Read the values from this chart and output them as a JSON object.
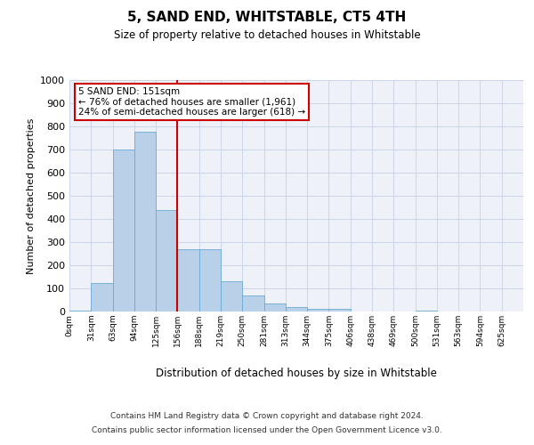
{
  "title": "5, SAND END, WHITSTABLE, CT5 4TH",
  "subtitle": "Size of property relative to detached houses in Whitstable",
  "xlabel": "Distribution of detached houses by size in Whitstable",
  "ylabel": "Number of detached properties",
  "bar_color": "#b8d0e8",
  "bar_edge_color": "#6aaad4",
  "categories": [
    "0sqm",
    "31sqm",
    "63sqm",
    "94sqm",
    "125sqm",
    "156sqm",
    "188sqm",
    "219sqm",
    "250sqm",
    "281sqm",
    "313sqm",
    "344sqm",
    "375sqm",
    "406sqm",
    "438sqm",
    "469sqm",
    "500sqm",
    "531sqm",
    "563sqm",
    "594sqm",
    "625sqm"
  ],
  "values": [
    5,
    125,
    700,
    775,
    440,
    270,
    270,
    130,
    70,
    35,
    20,
    10,
    10,
    0,
    0,
    0,
    5,
    0,
    0,
    0,
    0
  ],
  "ylim": [
    0,
    1000
  ],
  "yticks": [
    0,
    100,
    200,
    300,
    400,
    500,
    600,
    700,
    800,
    900,
    1000
  ],
  "vline_x": 5.0,
  "vline_color": "#cc0000",
  "annotation_line1": "5 SAND END: 151sqm",
  "annotation_line2": "← 76% of detached houses are smaller (1,961)",
  "annotation_line3": "24% of semi-detached houses are larger (618) →",
  "annotation_box_color": "#ffffff",
  "annotation_box_edge": "#cc0000",
  "footer_line1": "Contains HM Land Registry data © Crown copyright and database right 2024.",
  "footer_line2": "Contains public sector information licensed under the Open Government Licence v3.0.",
  "grid_color": "#ccd6e8",
  "background_color": "#eef2f8",
  "fig_width": 6.0,
  "fig_height": 5.0,
  "dpi": 100
}
